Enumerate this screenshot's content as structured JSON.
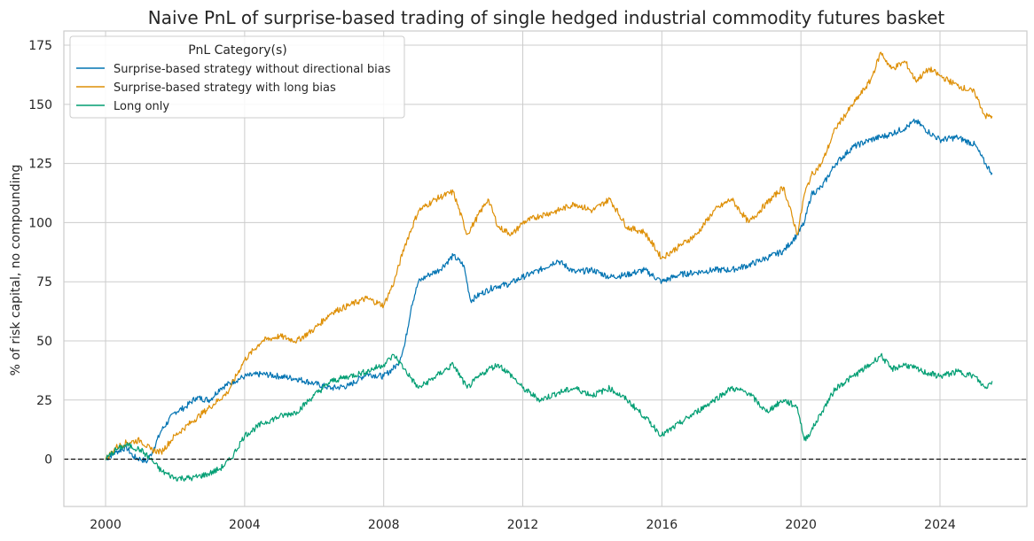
{
  "chart_data": {
    "type": "line",
    "title": "Naive PnL of surprise-based trading of single hedged industrial commodity futures basket",
    "xlabel": "",
    "ylabel": "% of risk capital, no compounding",
    "xlim": [
      1998.8,
      2026.5
    ],
    "ylim": [
      -20,
      181
    ],
    "xticks": [
      2000,
      2004,
      2008,
      2012,
      2016,
      2020,
      2024
    ],
    "xtick_labels": [
      "2000",
      "2004",
      "2008",
      "2012",
      "2016",
      "2020",
      "2024"
    ],
    "yticks": [
      0,
      25,
      50,
      75,
      100,
      125,
      150,
      175
    ],
    "ytick_labels": [
      "0",
      "25",
      "50",
      "75",
      "100",
      "125",
      "150",
      "175"
    ],
    "grid": true,
    "reference_line": {
      "y": 0,
      "style": "dashed",
      "color": "#000000"
    },
    "legend": {
      "title": "PnL Category(s)",
      "placement": "top-left"
    },
    "series": [
      {
        "name": "Surprise-based strategy without directional bias",
        "color": "#0173b2",
        "x": [
          2000.0,
          2000.3,
          2000.6,
          2000.8,
          2001.0,
          2001.2,
          2001.4,
          2001.6,
          2002.0,
          2002.3,
          2002.6,
          2003.0,
          2003.3,
          2003.7,
          2004.0,
          2004.5,
          2005.0,
          2005.5,
          2006.0,
          2006.5,
          2007.0,
          2007.5,
          2008.0,
          2008.4,
          2008.6,
          2008.8,
          2009.0,
          2009.3,
          2009.6,
          2010.0,
          2010.3,
          2010.5,
          2010.8,
          2011.2,
          2011.6,
          2012.0,
          2012.5,
          2013.0,
          2013.5,
          2014.0,
          2014.5,
          2015.0,
          2015.5,
          2016.0,
          2016.5,
          2017.0,
          2017.5,
          2018.0,
          2018.5,
          2019.0,
          2019.5,
          2019.9,
          2020.1,
          2020.3,
          2020.6,
          2021.0,
          2021.5,
          2022.0,
          2022.5,
          2023.0,
          2023.3,
          2023.7,
          2024.0,
          2024.5,
          2025.0,
          2025.3,
          2025.5
        ],
        "values": [
          0,
          3,
          5,
          1,
          0,
          -1,
          5,
          12,
          20,
          22,
          26,
          25,
          30,
          33,
          35,
          36,
          35,
          34,
          32,
          30,
          31,
          36,
          35,
          40,
          48,
          65,
          75,
          78,
          80,
          86,
          82,
          67,
          70,
          73,
          74,
          77,
          80,
          84,
          79,
          80,
          77,
          78,
          80,
          75,
          78,
          79,
          80,
          80,
          82,
          85,
          88,
          95,
          100,
          112,
          115,
          125,
          132,
          135,
          137,
          140,
          143,
          138,
          135,
          136,
          133,
          125,
          121
        ]
      },
      {
        "name": "Surprise-based strategy with long bias",
        "color": "#de8f05",
        "x": [
          2000.0,
          2000.3,
          2000.6,
          2001.0,
          2001.3,
          2001.6,
          2002.0,
          2002.5,
          2003.0,
          2003.5,
          2004.0,
          2004.5,
          2005.0,
          2005.5,
          2006.0,
          2006.5,
          2007.0,
          2007.5,
          2008.0,
          2008.3,
          2008.6,
          2009.0,
          2009.5,
          2010.0,
          2010.4,
          2010.6,
          2011.0,
          2011.3,
          2011.7,
          2012.0,
          2012.5,
          2013.0,
          2013.5,
          2014.0,
          2014.5,
          2015.0,
          2015.5,
          2016.0,
          2016.5,
          2017.0,
          2017.5,
          2018.0,
          2018.5,
          2019.0,
          2019.5,
          2019.9,
          2020.1,
          2020.3,
          2020.6,
          2021.0,
          2021.5,
          2022.0,
          2022.3,
          2022.6,
          2023.0,
          2023.3,
          2023.7,
          2024.0,
          2024.5,
          2025.0,
          2025.3,
          2025.5
        ],
        "values": [
          0,
          5,
          7,
          8,
          4,
          3,
          10,
          16,
          22,
          28,
          42,
          50,
          52,
          50,
          55,
          62,
          65,
          68,
          65,
          75,
          90,
          105,
          110,
          113,
          95,
          100,
          110,
          98,
          95,
          100,
          103,
          105,
          108,
          105,
          110,
          98,
          96,
          85,
          90,
          95,
          105,
          110,
          100,
          108,
          115,
          95,
          112,
          120,
          125,
          140,
          150,
          160,
          172,
          165,
          168,
          160,
          165,
          162,
          158,
          155,
          145,
          145
        ]
      },
      {
        "name": "Long only",
        "color": "#029e73",
        "x": [
          2000.0,
          2000.3,
          2000.6,
          2001.0,
          2001.3,
          2001.6,
          2002.0,
          2002.5,
          2003.0,
          2003.3,
          2003.6,
          2004.0,
          2004.5,
          2005.0,
          2005.5,
          2006.0,
          2006.5,
          2007.0,
          2007.5,
          2008.0,
          2008.3,
          2008.6,
          2009.0,
          2009.5,
          2010.0,
          2010.4,
          2010.6,
          2011.0,
          2011.3,
          2011.7,
          2012.0,
          2012.5,
          2013.0,
          2013.5,
          2014.0,
          2014.5,
          2015.0,
          2015.5,
          2016.0,
          2016.5,
          2017.0,
          2017.5,
          2018.0,
          2018.5,
          2019.0,
          2019.5,
          2019.9,
          2020.1,
          2020.3,
          2020.6,
          2021.0,
          2021.5,
          2022.0,
          2022.3,
          2022.6,
          2023.0,
          2023.5,
          2024.0,
          2024.5,
          2025.0,
          2025.3,
          2025.5
        ],
        "values": [
          0,
          4,
          6,
          4,
          0,
          -5,
          -8,
          -8,
          -6,
          -4,
          0,
          10,
          15,
          18,
          20,
          27,
          33,
          35,
          37,
          40,
          44,
          38,
          30,
          35,
          40,
          30,
          33,
          38,
          40,
          35,
          30,
          25,
          28,
          30,
          27,
          30,
          25,
          18,
          10,
          15,
          20,
          25,
          30,
          28,
          20,
          25,
          22,
          8,
          12,
          20,
          30,
          35,
          40,
          44,
          38,
          40,
          37,
          35,
          37,
          35,
          30,
          33
        ]
      }
    ]
  }
}
